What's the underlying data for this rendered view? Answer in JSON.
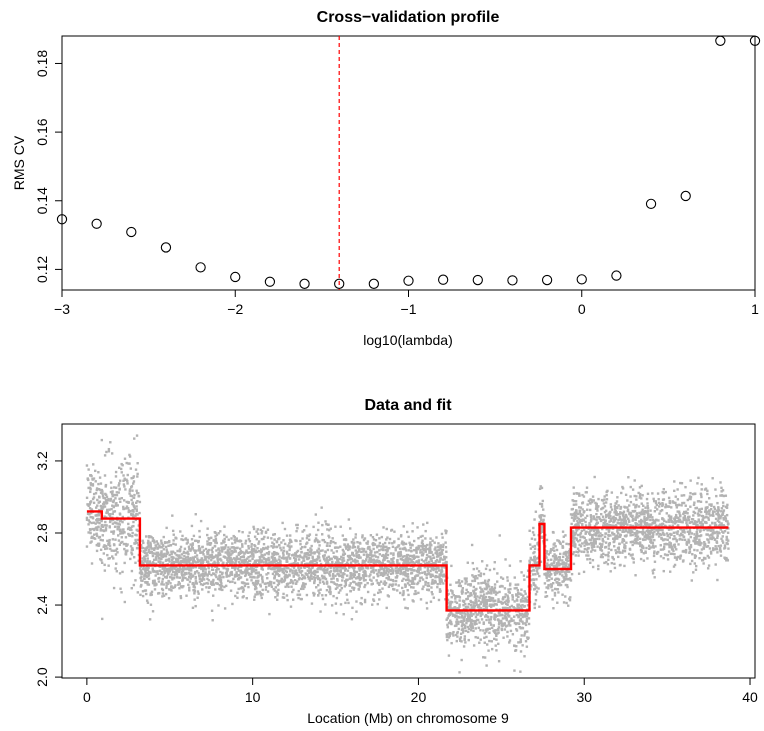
{
  "chart_data": [
    {
      "type": "scatter",
      "title": "Cross−validation profile",
      "xlabel": "log10(lambda)",
      "ylabel": "RMS CV",
      "xlim": [
        -3.0,
        1.0
      ],
      "ylim": [
        0.114,
        0.188
      ],
      "xticks": [
        -3,
        -2,
        -1,
        0,
        1
      ],
      "xtick_labels": [
        "−3",
        "−2",
        "−1",
        "0",
        "1"
      ],
      "yticks": [
        0.12,
        0.14,
        0.16,
        0.18
      ],
      "ytick_labels": [
        "0.12",
        "0.14",
        "0.16",
        "0.18"
      ],
      "marker": "open-circle",
      "selected_x": -1.4,
      "selected_line_color": "#ff0000",
      "selected_line_style": "dashed",
      "x": [
        -3.0,
        -2.8,
        -2.6,
        -2.4,
        -2.2,
        -2.0,
        -1.8,
        -1.6,
        -1.4,
        -1.2,
        -1.0,
        -0.8,
        -0.6,
        -0.4,
        -0.2,
        0.0,
        0.2,
        0.4,
        0.6,
        0.8,
        1.0
      ],
      "y": [
        0.1346,
        0.1333,
        0.1309,
        0.1264,
        0.1206,
        0.1178,
        0.1164,
        0.1158,
        0.1158,
        0.1158,
        0.1167,
        0.117,
        0.1169,
        0.1168,
        0.1169,
        0.1171,
        0.1182,
        0.1391,
        0.1414,
        0.1866,
        0.1866
      ]
    },
    {
      "type": "scatter",
      "title": "Data and fit",
      "xlabel": "Location (Mb) on chromosome 9",
      "ylabel": "",
      "xlim": [
        -1.5,
        40.3
      ],
      "ylim": [
        1.995,
        3.405
      ],
      "xticks": [
        0,
        10,
        20,
        30,
        40
      ],
      "xtick_labels": [
        "0",
        "10",
        "20",
        "30",
        "40"
      ],
      "yticks": [
        2.0,
        2.4,
        2.8,
        3.2
      ],
      "ytick_labels": [
        "2.0",
        "2.4",
        "2.8",
        "3.2"
      ],
      "points_color": "#b3b3b3",
      "fit_color": "#ff0000",
      "segments": [
        {
          "start": 0.0,
          "end": 0.9,
          "mean": 2.92,
          "sd": 0.12
        },
        {
          "start": 0.9,
          "end": 3.2,
          "mean": 2.88,
          "sd": 0.16
        },
        {
          "start": 3.2,
          "end": 21.7,
          "mean": 2.62,
          "sd": 0.09
        },
        {
          "start": 21.7,
          "end": 26.7,
          "mean": 2.37,
          "sd": 0.11
        },
        {
          "start": 26.7,
          "end": 27.3,
          "mean": 2.62,
          "sd": 0.1
        },
        {
          "start": 27.3,
          "end": 27.6,
          "mean": 2.85,
          "sd": 0.1
        },
        {
          "start": 27.6,
          "end": 29.2,
          "mean": 2.6,
          "sd": 0.08
        },
        {
          "start": 29.2,
          "end": 38.7,
          "mean": 2.83,
          "sd": 0.1
        }
      ]
    }
  ]
}
